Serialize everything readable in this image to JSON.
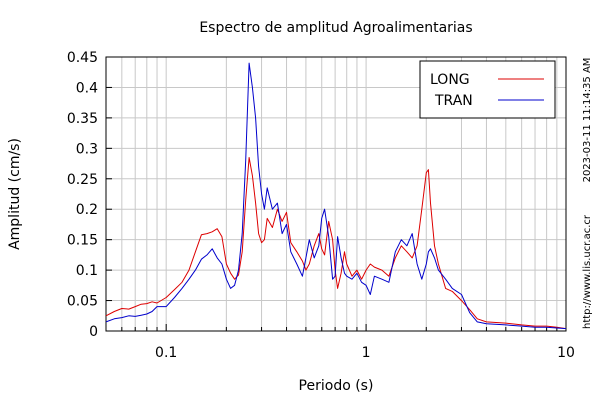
{
  "chart_data": {
    "type": "line",
    "title": "Espectro de amplitud Agroalimentarias",
    "xlabel": "Periodo (s)",
    "ylabel": "Amplitud (cm/s)",
    "x_scale": "log",
    "xlim": [
      0.05,
      10
    ],
    "ylim": [
      0,
      0.45
    ],
    "x_ticks": [
      0.1,
      1,
      10
    ],
    "x_tick_labels": [
      "0.1",
      "1",
      "10"
    ],
    "y_ticks": [
      0,
      0.05,
      0.1,
      0.15,
      0.2,
      0.25,
      0.3,
      0.35,
      0.4,
      0.45
    ],
    "y_tick_labels": [
      "0",
      "0.05",
      "0.1",
      "0.15",
      "0.2",
      "0.25",
      "0.3",
      "0.35",
      "0.4",
      "0.45"
    ],
    "grid": true,
    "legend_position": "top-right",
    "side_text": [
      "2023-03-11 11:14:35 AM",
      "http://www.lis.ucr.ac.cr"
    ],
    "colors": {
      "LONG": "#dd0000",
      "TRAN": "#0000cc"
    },
    "series": [
      {
        "name": "LONG",
        "x": [
          0.05,
          0.055,
          0.06,
          0.065,
          0.07,
          0.075,
          0.08,
          0.085,
          0.09,
          0.1,
          0.11,
          0.12,
          0.13,
          0.14,
          0.15,
          0.16,
          0.17,
          0.18,
          0.19,
          0.2,
          0.21,
          0.22,
          0.23,
          0.24,
          0.25,
          0.26,
          0.27,
          0.28,
          0.29,
          0.3,
          0.31,
          0.32,
          0.34,
          0.36,
          0.38,
          0.4,
          0.42,
          0.45,
          0.48,
          0.5,
          0.52,
          0.55,
          0.58,
          0.6,
          0.62,
          0.65,
          0.68,
          0.7,
          0.72,
          0.75,
          0.78,
          0.8,
          0.85,
          0.9,
          0.95,
          1.0,
          1.05,
          1.1,
          1.2,
          1.3,
          1.4,
          1.5,
          1.6,
          1.7,
          1.8,
          1.9,
          2.0,
          2.05,
          2.1,
          2.2,
          2.3,
          2.5,
          2.7,
          3.0,
          3.3,
          3.6,
          4.0,
          5.0,
          6.0,
          7.0,
          8.0,
          9.0,
          10.0
        ],
        "values": [
          0.025,
          0.032,
          0.037,
          0.036,
          0.04,
          0.044,
          0.045,
          0.048,
          0.046,
          0.055,
          0.068,
          0.08,
          0.1,
          0.13,
          0.158,
          0.16,
          0.163,
          0.168,
          0.155,
          0.11,
          0.095,
          0.085,
          0.092,
          0.13,
          0.215,
          0.285,
          0.255,
          0.21,
          0.16,
          0.145,
          0.15,
          0.185,
          0.17,
          0.2,
          0.18,
          0.195,
          0.145,
          0.13,
          0.115,
          0.1,
          0.11,
          0.14,
          0.16,
          0.135,
          0.125,
          0.18,
          0.15,
          0.1,
          0.07,
          0.095,
          0.13,
          0.11,
          0.09,
          0.1,
          0.085,
          0.1,
          0.11,
          0.105,
          0.1,
          0.09,
          0.12,
          0.14,
          0.13,
          0.12,
          0.14,
          0.2,
          0.26,
          0.265,
          0.21,
          0.14,
          0.11,
          0.07,
          0.065,
          0.05,
          0.035,
          0.02,
          0.015,
          0.013,
          0.01,
          0.008,
          0.008,
          0.006,
          0.004
        ]
      },
      {
        "name": "TRAN",
        "x": [
          0.05,
          0.055,
          0.06,
          0.065,
          0.07,
          0.075,
          0.08,
          0.085,
          0.09,
          0.1,
          0.11,
          0.12,
          0.13,
          0.14,
          0.15,
          0.16,
          0.17,
          0.18,
          0.19,
          0.2,
          0.21,
          0.22,
          0.23,
          0.24,
          0.25,
          0.26,
          0.27,
          0.28,
          0.29,
          0.3,
          0.31,
          0.32,
          0.34,
          0.36,
          0.38,
          0.4,
          0.42,
          0.45,
          0.48,
          0.5,
          0.52,
          0.55,
          0.58,
          0.6,
          0.62,
          0.65,
          0.68,
          0.7,
          0.72,
          0.75,
          0.78,
          0.8,
          0.85,
          0.9,
          0.95,
          1.0,
          1.05,
          1.1,
          1.2,
          1.3,
          1.4,
          1.5,
          1.6,
          1.7,
          1.8,
          1.9,
          2.0,
          2.05,
          2.1,
          2.2,
          2.3,
          2.5,
          2.7,
          3.0,
          3.3,
          3.6,
          4.0,
          5.0,
          6.0,
          7.0,
          8.0,
          9.0,
          10.0
        ],
        "values": [
          0.015,
          0.02,
          0.022,
          0.025,
          0.024,
          0.026,
          0.028,
          0.032,
          0.04,
          0.04,
          0.055,
          0.07,
          0.085,
          0.1,
          0.118,
          0.125,
          0.135,
          0.12,
          0.11,
          0.085,
          0.07,
          0.075,
          0.1,
          0.16,
          0.28,
          0.44,
          0.4,
          0.35,
          0.27,
          0.225,
          0.2,
          0.235,
          0.2,
          0.21,
          0.16,
          0.175,
          0.13,
          0.11,
          0.09,
          0.12,
          0.15,
          0.12,
          0.14,
          0.185,
          0.2,
          0.155,
          0.085,
          0.09,
          0.155,
          0.12,
          0.095,
          0.09,
          0.085,
          0.095,
          0.08,
          0.075,
          0.06,
          0.09,
          0.085,
          0.08,
          0.13,
          0.15,
          0.14,
          0.16,
          0.11,
          0.085,
          0.11,
          0.13,
          0.135,
          0.12,
          0.1,
          0.085,
          0.07,
          0.06,
          0.03,
          0.015,
          0.012,
          0.01,
          0.008,
          0.006,
          0.006,
          0.005,
          0.004
        ]
      }
    ]
  }
}
